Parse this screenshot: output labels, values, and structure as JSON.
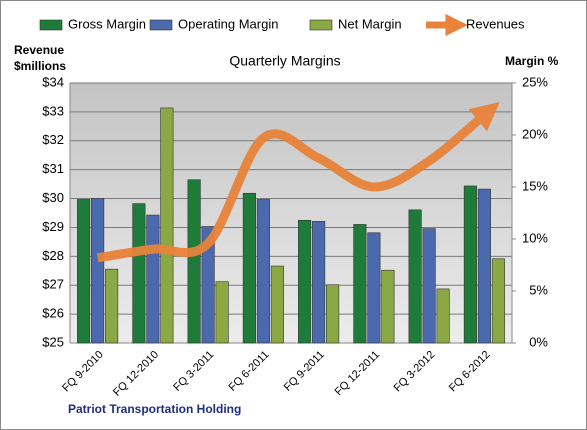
{
  "chart_data": {
    "type": "bar",
    "title": "Quarterly Margins",
    "ylabel": [
      "Revenue",
      "$millions"
    ],
    "y2label": "Margin %",
    "footer": "Patriot Transportation  Holding",
    "categories": [
      "FQ 9-2010",
      "FQ 12-2010",
      "FQ 3-2011",
      "FQ 6-2011",
      "FQ 9-2011",
      "FQ 12-2011",
      "FQ 3-2012",
      "FQ 6-2012"
    ],
    "series": [
      {
        "name": "Gross Margin",
        "color": "#1e7b3a",
        "axis": "y2",
        "values": [
          13.8,
          13.4,
          15.7,
          14.4,
          11.8,
          11.4,
          12.8,
          15.1
        ]
      },
      {
        "name": "Operating Margin",
        "color": "#4a6aad",
        "axis": "y2",
        "values": [
          13.9,
          12.3,
          11.2,
          13.8,
          11.7,
          10.6,
          11.0,
          14.8
        ]
      },
      {
        "name": "Net Margin",
        "color": "#8aa843",
        "axis": "y2",
        "values": [
          7.1,
          22.6,
          5.9,
          7.4,
          5.6,
          7.0,
          5.2,
          8.1
        ]
      },
      {
        "name": "Revenues",
        "color": "#e8833a",
        "type": "line",
        "axis": "y",
        "values": [
          27.95,
          28.25,
          28.45,
          32.1,
          31.4,
          30.4,
          31.3,
          32.9
        ]
      }
    ],
    "ylim": [
      25,
      34
    ],
    "yticks": [
      {
        "value": 25,
        "label": "$25"
      },
      {
        "value": 26,
        "label": "$26"
      },
      {
        "value": 27,
        "label": "$27"
      },
      {
        "value": 28,
        "label": "$28"
      },
      {
        "value": 29,
        "label": "$29"
      },
      {
        "value": 30,
        "label": "$30"
      },
      {
        "value": 31,
        "label": "$31"
      },
      {
        "value": 32,
        "label": "$32"
      },
      {
        "value": 33,
        "label": "$33"
      },
      {
        "value": 34,
        "label": "$34"
      }
    ],
    "y2lim": [
      0,
      25
    ],
    "y2ticks": [
      {
        "value": 0,
        "label": "0%"
      },
      {
        "value": 5,
        "label": "5%"
      },
      {
        "value": 10,
        "label": "10%"
      },
      {
        "value": 15,
        "label": "15%"
      },
      {
        "value": 20,
        "label": "20%"
      },
      {
        "value": 25,
        "label": "25%"
      }
    ],
    "grid": true,
    "legend": "top"
  }
}
